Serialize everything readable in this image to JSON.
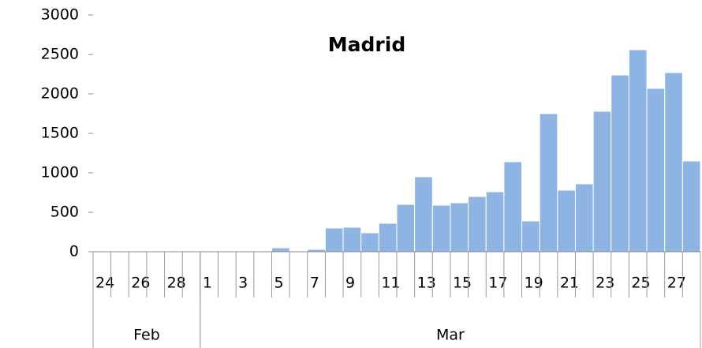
{
  "chart_data": {
    "type": "bar",
    "title": "Madrid",
    "categories": [
      "24",
      null,
      "26",
      null,
      "28",
      null,
      "1",
      null,
      "3",
      null,
      "5",
      null,
      "7",
      null,
      "9",
      null,
      "11",
      null,
      "13",
      null,
      "15",
      null,
      "17",
      null,
      "19",
      null,
      "21",
      null,
      "23",
      null,
      "25",
      null,
      "27",
      null
    ],
    "groups": [
      {
        "name": "Feb",
        "start": 0,
        "end": 5
      },
      {
        "name": "Mar",
        "start": 6,
        "end": 33
      }
    ],
    "values": [
      0,
      0,
      0,
      0,
      0,
      0,
      0,
      0,
      0,
      0,
      50,
      0,
      30,
      300,
      310,
      240,
      360,
      600,
      950,
      590,
      620,
      700,
      760,
      1140,
      390,
      1750,
      780,
      860,
      1780,
      2240,
      2560,
      2070,
      2270,
      1150
    ],
    "color": "#8db4e2",
    "ylim": [
      0,
      3000
    ],
    "yticks": [
      0,
      500,
      1000,
      1500,
      2000,
      2500,
      3000
    ],
    "grid": false
  }
}
